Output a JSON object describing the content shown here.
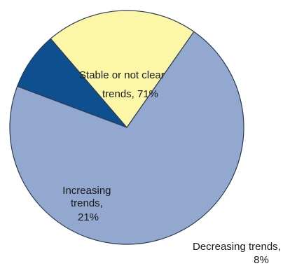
{
  "chart_data": {
    "type": "pie",
    "slices": [
      {
        "label_lines": [
          "Stable or not clear",
          "trends, 71%"
        ],
        "value": 71,
        "color": "#93a8cf"
      },
      {
        "label_lines": [
          "Decreasing trends,",
          "8%"
        ],
        "value": 8,
        "color": "#0d4f8f"
      },
      {
        "label_lines": [
          "Increasing",
          "trends,",
          "21%"
        ],
        "value": 21,
        "color": "#fbf7a6"
      }
    ],
    "stroke_color": "#2b3a55"
  }
}
